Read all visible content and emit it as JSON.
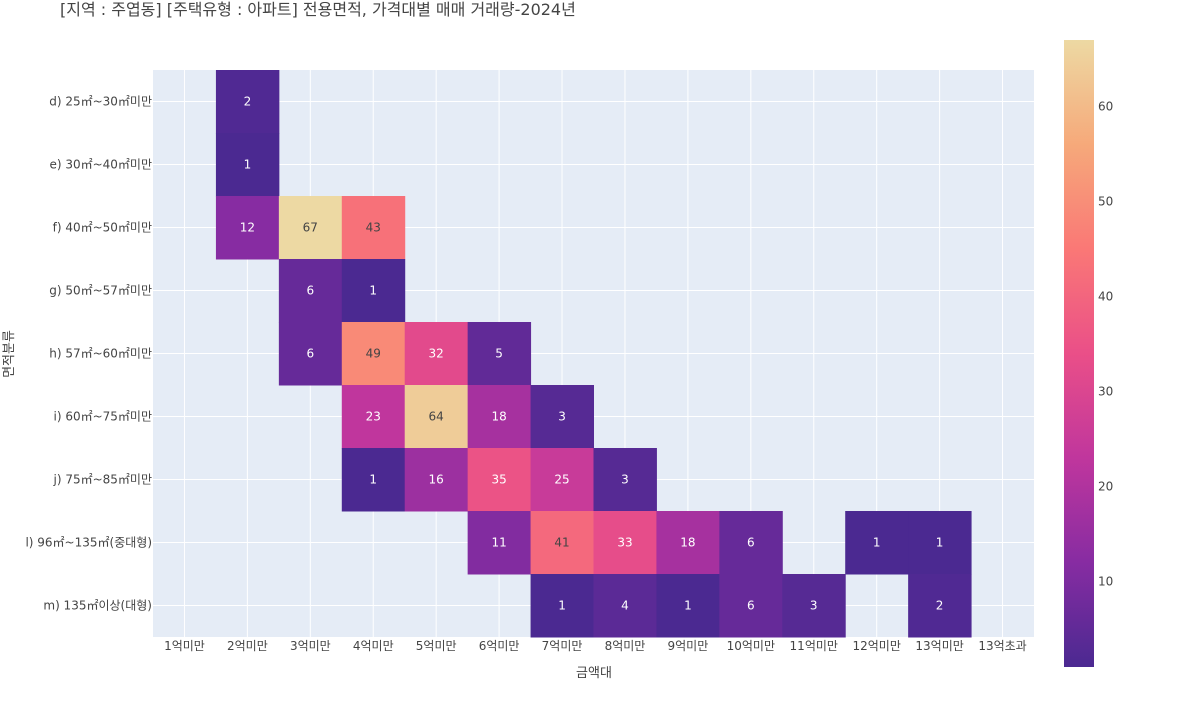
{
  "chart_data": {
    "type": "heatmap",
    "title": "[지역 : 주엽동] [주택유형 : 아파트] 전용면적, 가격대별 매매 거래량-2024년",
    "xlabel": "금액대",
    "ylabel": "면적분류",
    "x_categories": [
      "1억미만",
      "2억미만",
      "3억미만",
      "4억미만",
      "5억미만",
      "6억미만",
      "7억미만",
      "8억미만",
      "9억미만",
      "10억미만",
      "11억미만",
      "12억미만",
      "13억미만",
      "13억초과"
    ],
    "y_categories": [
      "d) 25㎡~30㎡미만",
      "e) 30㎡~40㎡미만",
      "f) 40㎡~50㎡미만",
      "g) 50㎡~57㎡미만",
      "h) 57㎡~60㎡미만",
      "i) 60㎡~75㎡미만",
      "j) 75㎡~85㎡미만",
      "l) 96㎡~135㎡(중대형)",
      "m) 135㎡이상(대형)"
    ],
    "values": [
      [
        null,
        2,
        null,
        null,
        null,
        null,
        null,
        null,
        null,
        null,
        null,
        null,
        null,
        null
      ],
      [
        null,
        1,
        null,
        null,
        null,
        null,
        null,
        null,
        null,
        null,
        null,
        null,
        null,
        null
      ],
      [
        null,
        12,
        67,
        43,
        null,
        null,
        null,
        null,
        null,
        null,
        null,
        null,
        null,
        null
      ],
      [
        null,
        null,
        6,
        1,
        null,
        null,
        null,
        null,
        null,
        null,
        null,
        null,
        null,
        null
      ],
      [
        null,
        null,
        6,
        49,
        32,
        5,
        null,
        null,
        null,
        null,
        null,
        null,
        null,
        null
      ],
      [
        null,
        null,
        null,
        23,
        64,
        18,
        3,
        null,
        null,
        null,
        null,
        null,
        null,
        null
      ],
      [
        null,
        null,
        null,
        1,
        16,
        35,
        25,
        3,
        null,
        null,
        null,
        null,
        null,
        null
      ],
      [
        null,
        null,
        null,
        null,
        null,
        11,
        41,
        33,
        18,
        6,
        null,
        1,
        1,
        null
      ],
      [
        null,
        null,
        null,
        null,
        null,
        null,
        1,
        4,
        1,
        6,
        3,
        null,
        2,
        null
      ]
    ],
    "colorscale": "agsunset",
    "zrange": [
      1,
      67
    ],
    "colorbar_ticks": [
      10,
      20,
      30,
      40,
      50,
      60
    ],
    "grid": true,
    "legend": "colorbar-right"
  }
}
